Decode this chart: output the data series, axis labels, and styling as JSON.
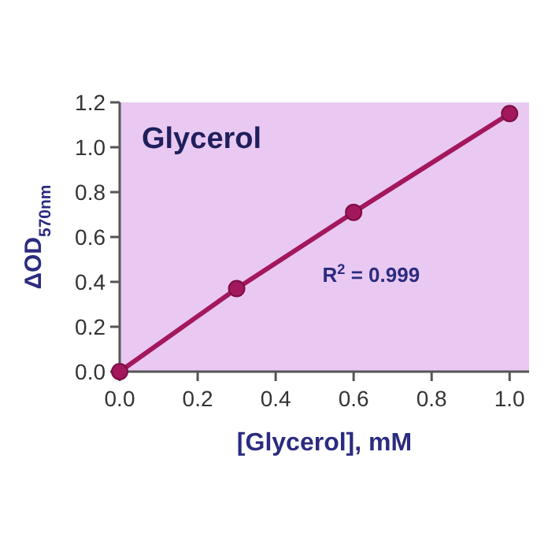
{
  "chart_data": {
    "type": "line",
    "title": "Glycerol",
    "xlabel": "[Glycerol], mM",
    "ylabel": "ΔOD$_{570nm}$",
    "x": [
      0,
      0.3,
      0.6,
      1.0
    ],
    "series": [
      {
        "color": "#a3185c",
        "values": [
          0,
          0.37,
          0.71,
          1.15
        ]
      }
    ],
    "marker": "circle",
    "line_style": "solid",
    "grid": false,
    "xlim": [
      0,
      1.05
    ],
    "xticks": [
      {
        "value": 0,
        "label": "0.0"
      },
      {
        "value": 0.2,
        "label": "0.2"
      },
      {
        "value": 0.4,
        "label": "0.4"
      },
      {
        "value": 0.6,
        "label": "0.6"
      },
      {
        "value": 0.8,
        "label": "0.8"
      },
      {
        "value": 1.0,
        "label": "1.0"
      }
    ],
    "ylim": [
      0,
      1.2
    ],
    "yticks": [
      {
        "value": 0,
        "label": "0.0"
      },
      {
        "value": 0.2,
        "label": "0.2"
      },
      {
        "value": 0.4,
        "label": "0.4"
      },
      {
        "value": 0.6,
        "label": "0.6"
      },
      {
        "value": 0.8,
        "label": "0.8"
      },
      {
        "value": 1.0,
        "label": "1.0"
      },
      {
        "value": 1.2,
        "label": "1.2"
      }
    ],
    "annotations": [
      "R$^{2}$ = 0.999"
    ]
  }
}
